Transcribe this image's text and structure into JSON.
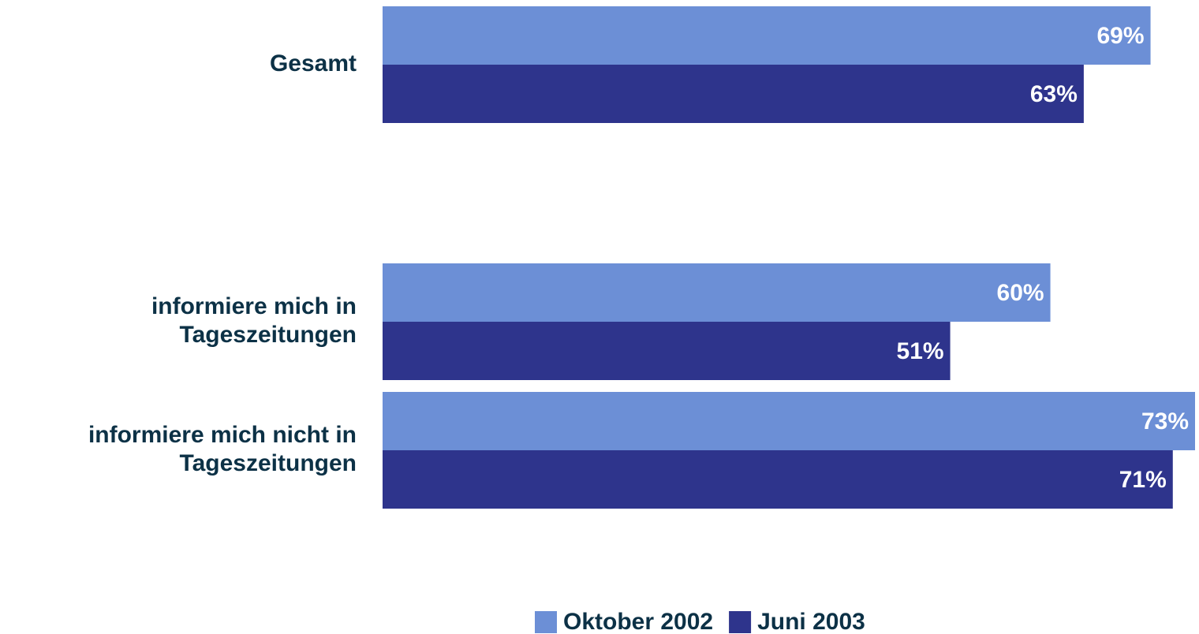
{
  "chart_data": {
    "type": "bar",
    "orientation": "horizontal",
    "categories": [
      "Gesamt",
      null,
      "informiere mich in\nTageszeitungen",
      "informiere mich nicht in\nTageszeitungen"
    ],
    "series": [
      {
        "name": "Oktober 2002",
        "color": "#6c8fd6",
        "values": [
          69,
          null,
          60,
          73
        ],
        "value_labels": [
          "69%",
          null,
          "60%",
          "73%"
        ]
      },
      {
        "name": "Juni 2003",
        "color": "#2e348c",
        "values": [
          63,
          null,
          51,
          71
        ],
        "value_labels": [
          "63%",
          null,
          "51%",
          "71%"
        ]
      }
    ],
    "xlim": [
      0,
      73
    ],
    "legend": "bottom"
  }
}
